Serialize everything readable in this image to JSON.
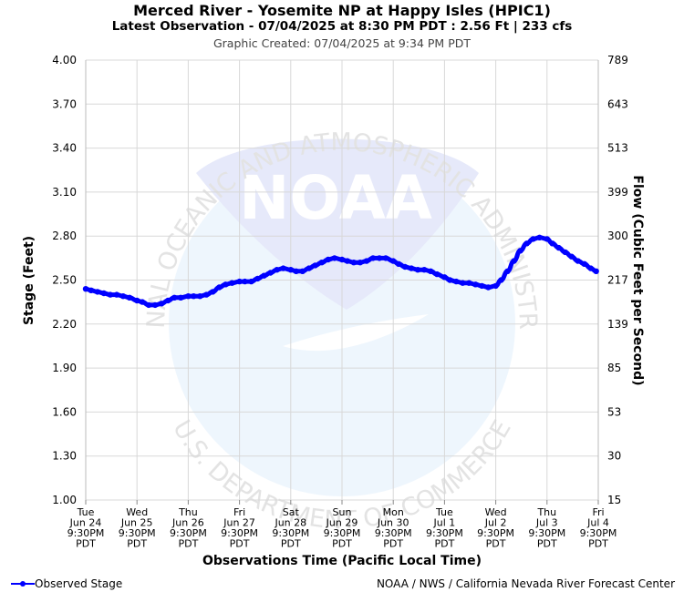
{
  "header": {
    "title": "Merced River - Yosemite NP at Happy Isles (HPIC1)",
    "subtitle": "Latest Observation - 07/04/2025 at 8:30 PM PDT : 2.56 Ft | 233 cfs",
    "created": "Graphic Created: 07/04/2025 at 9:34 PM PDT"
  },
  "watermark": {
    "logo_text": "NOAA",
    "ring_top": "NATIONAL OCEANIC AND ATMOSPHERIC ADMINISTRATION",
    "ring_bottom": "U.S. DEPARTMENT OF COMMERCE"
  },
  "legend": {
    "label": "Observed Stage",
    "color": "#0000ff"
  },
  "credit": "NOAA / NWS / California Nevada River Forecast Center",
  "chart_data": {
    "type": "line",
    "title": "Merced River - Yosemite NP at Happy Isles (HPIC1)",
    "xlabel": "Observations Time (Pacific Local Time)",
    "ylabel": "Stage (Feet)",
    "y2label": "Flow (Cubic Feet per Second)",
    "ylim": [
      1.0,
      4.0
    ],
    "grid": true,
    "legend_position": "bottom-left",
    "y_ticks": [
      "4.00",
      "3.70",
      "3.40",
      "3.10",
      "2.80",
      "2.50",
      "2.20",
      "1.90",
      "1.60",
      "1.30",
      "1.00"
    ],
    "y2_ticks": [
      "789",
      "643",
      "513",
      "399",
      "300",
      "217",
      "139",
      "85",
      "53",
      "30",
      "15"
    ],
    "x_ticks": [
      [
        "Tue",
        "Jun 24",
        "9:30PM",
        "PDT"
      ],
      [
        "Wed",
        "Jun 25",
        "9:30PM",
        "PDT"
      ],
      [
        "Thu",
        "Jun 26",
        "9:30PM",
        "PDT"
      ],
      [
        "Fri",
        "Jun 27",
        "9:30PM",
        "PDT"
      ],
      [
        "Sat",
        "Jun 28",
        "9:30PM",
        "PDT"
      ],
      [
        "Sun",
        "Jun 29",
        "9:30PM",
        "PDT"
      ],
      [
        "Mon",
        "Jun 30",
        "9:30PM",
        "PDT"
      ],
      [
        "Tue",
        "Jul 1",
        "9:30PM",
        "PDT"
      ],
      [
        "Wed",
        "Jul 2",
        "9:30PM",
        "PDT"
      ],
      [
        "Thu",
        "Jul 3",
        "9:30PM",
        "PDT"
      ],
      [
        "Fri",
        "Jul 4",
        "9:30PM",
        "PDT"
      ]
    ],
    "series": [
      {
        "name": "Observed Stage",
        "color": "#0000ff",
        "x": [
          "2025-06-24 21:30",
          "2025-06-25 00:00",
          "2025-06-25 03:00",
          "2025-06-25 06:00",
          "2025-06-25 09:00",
          "2025-06-25 12:00",
          "2025-06-25 15:00",
          "2025-06-25 18:00",
          "2025-06-25 21:30",
          "2025-06-26 00:00",
          "2025-06-26 03:00",
          "2025-06-26 06:00",
          "2025-06-26 09:00",
          "2025-06-26 12:00",
          "2025-06-26 15:00",
          "2025-06-26 18:00",
          "2025-06-26 21:30",
          "2025-06-27 00:00",
          "2025-06-27 03:00",
          "2025-06-27 06:00",
          "2025-06-27 09:00",
          "2025-06-27 12:00",
          "2025-06-27 15:00",
          "2025-06-27 18:00",
          "2025-06-27 21:30",
          "2025-06-28 00:00",
          "2025-06-28 03:00",
          "2025-06-28 06:00",
          "2025-06-28 09:00",
          "2025-06-28 12:00",
          "2025-06-28 15:00",
          "2025-06-28 18:00",
          "2025-06-28 21:30",
          "2025-06-29 00:00",
          "2025-06-29 03:00",
          "2025-06-29 06:00",
          "2025-06-29 09:00",
          "2025-06-29 12:00",
          "2025-06-29 15:00",
          "2025-06-29 18:00",
          "2025-06-29 21:30",
          "2025-06-30 00:00",
          "2025-06-30 03:00",
          "2025-06-30 06:00",
          "2025-06-30 09:00",
          "2025-06-30 12:00",
          "2025-06-30 15:00",
          "2025-06-30 18:00",
          "2025-06-30 21:30",
          "2025-07-01 00:00",
          "2025-07-01 03:00",
          "2025-07-01 06:00",
          "2025-07-01 09:00",
          "2025-07-01 12:00",
          "2025-07-01 15:00",
          "2025-07-01 18:00",
          "2025-07-01 21:30",
          "2025-07-02 00:00",
          "2025-07-02 03:00",
          "2025-07-02 06:00",
          "2025-07-02 09:00",
          "2025-07-02 12:00",
          "2025-07-02 15:00",
          "2025-07-02 18:00",
          "2025-07-02 21:30",
          "2025-07-03 00:00",
          "2025-07-03 03:00",
          "2025-07-03 06:00",
          "2025-07-03 09:00",
          "2025-07-03 12:00",
          "2025-07-03 15:00",
          "2025-07-03 18:00",
          "2025-07-03 21:30",
          "2025-07-04 00:00",
          "2025-07-04 03:00",
          "2025-07-04 06:00",
          "2025-07-04 09:00",
          "2025-07-04 12:00",
          "2025-07-04 15:00",
          "2025-07-04 18:00",
          "2025-07-04 20:30"
        ],
        "values": [
          2.44,
          2.43,
          2.42,
          2.41,
          2.4,
          2.4,
          2.39,
          2.38,
          2.36,
          2.35,
          2.33,
          2.33,
          2.34,
          2.36,
          2.38,
          2.38,
          2.39,
          2.39,
          2.39,
          2.4,
          2.42,
          2.45,
          2.47,
          2.48,
          2.49,
          2.49,
          2.49,
          2.51,
          2.53,
          2.55,
          2.57,
          2.58,
          2.57,
          2.56,
          2.56,
          2.58,
          2.6,
          2.62,
          2.64,
          2.65,
          2.64,
          2.63,
          2.62,
          2.62,
          2.63,
          2.65,
          2.65,
          2.65,
          2.63,
          2.61,
          2.59,
          2.58,
          2.57,
          2.57,
          2.56,
          2.54,
          2.52,
          2.5,
          2.49,
          2.48,
          2.48,
          2.47,
          2.46,
          2.45,
          2.46,
          2.5,
          2.56,
          2.63,
          2.7,
          2.75,
          2.78,
          2.79,
          2.78,
          2.75,
          2.72,
          2.69,
          2.66,
          2.63,
          2.61,
          2.58,
          2.56
        ]
      }
    ]
  }
}
